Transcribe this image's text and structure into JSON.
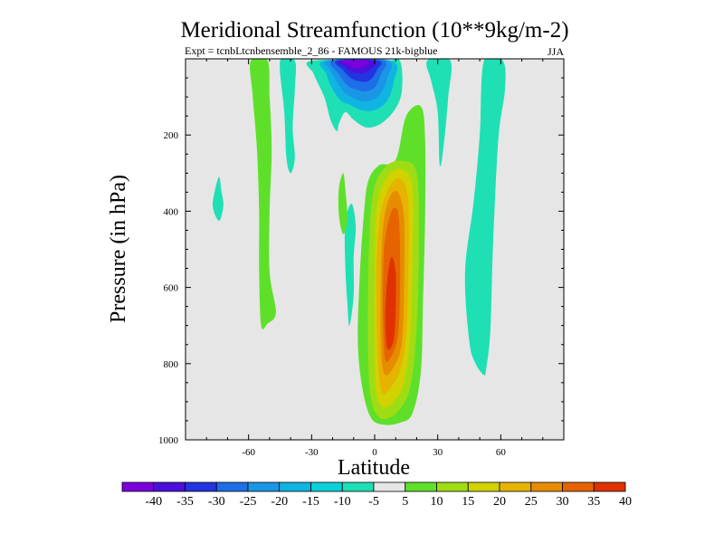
{
  "chart_data": {
    "type": "filled-contour",
    "title": "Meridional Streamfunction (10**9kg/m-2)",
    "subtitle_left": "Expt = tcnbLtcnbensemble_2_86 - FAMOUS 21k-bigblue",
    "subtitle_right": "JJA",
    "xlabel": "Latitude",
    "ylabel": "Pressure (in hPa)",
    "xlim": [
      -90,
      90
    ],
    "ylim": [
      1000,
      0
    ],
    "x_ticks": [
      -60,
      -30,
      0,
      30,
      60
    ],
    "x_tick_labels": [
      "-60",
      "-30",
      "0",
      "30",
      "60"
    ],
    "y_ticks": [
      200,
      400,
      600,
      800,
      1000
    ],
    "y_tick_labels": [
      "200",
      "400",
      "600",
      "800",
      "1000"
    ],
    "background_color": "#e6e6e6",
    "colorbar": {
      "levels": [
        -40,
        -35,
        -30,
        -25,
        -20,
        -15,
        -10,
        -5,
        5,
        10,
        15,
        20,
        25,
        30,
        35,
        40
      ],
      "labels": [
        "-40",
        "-35",
        "-30",
        "-25",
        "-20",
        "-15",
        "-10",
        "-5",
        "5",
        "10",
        "15",
        "20",
        "25",
        "30",
        "35",
        "40"
      ],
      "colors": [
        "#7a00dc",
        "#4b0fdc",
        "#2233e0",
        "#1e6ee6",
        "#1a96e6",
        "#10b4e0",
        "#0ad0d8",
        "#1ee0b4",
        "#e6e6e6",
        "#5ee02a",
        "#a0dc14",
        "#d2d200",
        "#e6b400",
        "#e68c00",
        "#e66400",
        "#e03200"
      ]
    },
    "regions": [
      {
        "name": "nh-subtropical-cell-positive",
        "level": 5,
        "points": [
          [
            4,
            960
          ],
          [
            -2,
            940
          ],
          [
            -6,
            860
          ],
          [
            -8,
            740
          ],
          [
            -7,
            560
          ],
          [
            -5,
            400
          ],
          [
            -3,
            320
          ],
          [
            2,
            280
          ],
          [
            10,
            265
          ],
          [
            15,
            150
          ],
          [
            22,
            125
          ],
          [
            24,
            210
          ],
          [
            24,
            420
          ],
          [
            23,
            640
          ],
          [
            22,
            820
          ],
          [
            18,
            930
          ],
          [
            12,
            955
          ]
        ]
      },
      {
        "name": "cell-level-10",
        "level": 10,
        "points": [
          [
            4,
            945
          ],
          [
            -1,
            910
          ],
          [
            -3,
            800
          ],
          [
            -3,
            560
          ],
          [
            -1,
            360
          ],
          [
            5,
            285
          ],
          [
            13,
            268
          ],
          [
            20,
            300
          ],
          [
            21,
            480
          ],
          [
            20,
            700
          ],
          [
            17,
            860
          ],
          [
            11,
            925
          ]
        ]
      },
      {
        "name": "cell-level-15",
        "level": 15,
        "points": [
          [
            4,
            915
          ],
          [
            1,
            880
          ],
          [
            0,
            780
          ],
          [
            0,
            560
          ],
          [
            1,
            390
          ],
          [
            6,
            310
          ],
          [
            13,
            290
          ],
          [
            18,
            340
          ],
          [
            18,
            520
          ],
          [
            17,
            720
          ],
          [
            14,
            850
          ],
          [
            9,
            900
          ]
        ]
      },
      {
        "name": "cell-level-20",
        "level": 20,
        "points": [
          [
            4,
            880
          ],
          [
            2,
            830
          ],
          [
            1,
            700
          ],
          [
            1,
            520
          ],
          [
            3,
            400
          ],
          [
            7,
            335
          ],
          [
            12,
            315
          ],
          [
            16,
            370
          ],
          [
            16,
            560
          ],
          [
            15,
            730
          ],
          [
            12,
            820
          ],
          [
            8,
            860
          ]
        ]
      },
      {
        "name": "cell-level-25",
        "level": 25,
        "points": [
          [
            5,
            830
          ],
          [
            3,
            760
          ],
          [
            3,
            580
          ],
          [
            4,
            440
          ],
          [
            7,
            365
          ],
          [
            11,
            350
          ],
          [
            14,
            420
          ],
          [
            14,
            600
          ],
          [
            13,
            740
          ],
          [
            10,
            800
          ]
        ]
      },
      {
        "name": "cell-level-30",
        "level": 30,
        "points": [
          [
            5,
            790
          ],
          [
            4,
            700
          ],
          [
            4,
            560
          ],
          [
            5,
            470
          ],
          [
            8,
            400
          ],
          [
            11,
            400
          ],
          [
            12,
            480
          ],
          [
            12,
            620
          ],
          [
            11,
            730
          ],
          [
            8,
            780
          ]
        ]
      },
      {
        "name": "cell-level-35",
        "level": 35,
        "points": [
          [
            6,
            760
          ],
          [
            5,
            680
          ],
          [
            6,
            580
          ],
          [
            8,
            520
          ],
          [
            10,
            560
          ],
          [
            10,
            660
          ],
          [
            9,
            740
          ]
        ]
      },
      {
        "name": "cell-level-40",
        "level": 40,
        "points": [
          [
            7,
            720
          ],
          [
            6,
            650
          ],
          [
            7,
            590
          ],
          [
            9,
            600
          ],
          [
            9,
            680
          ],
          [
            8,
            710
          ]
        ]
      },
      {
        "name": "sh-strat-positive",
        "level": 5,
        "points": [
          [
            -59,
            5
          ],
          [
            -51,
            5
          ],
          [
            -50,
            100
          ],
          [
            -49,
            240
          ],
          [
            -50,
            400
          ],
          [
            -50,
            560
          ],
          [
            -47,
            665
          ],
          [
            -51,
            695
          ],
          [
            -54,
            700
          ],
          [
            -55,
            560
          ],
          [
            -55,
            400
          ],
          [
            -56,
            240
          ],
          [
            -58,
            100
          ]
        ]
      },
      {
        "name": "sh-strat-negative",
        "level": -5,
        "points": [
          [
            -45,
            5
          ],
          [
            -38,
            5
          ],
          [
            -38,
            80
          ],
          [
            -39,
            180
          ],
          [
            -38,
            260
          ],
          [
            -40,
            300
          ],
          [
            -42,
            260
          ],
          [
            -43,
            140
          ]
        ]
      },
      {
        "name": "nh-strat-negative-ridge",
        "level": -5,
        "points": [
          [
            25,
            5
          ],
          [
            36,
            5
          ],
          [
            35,
            100
          ],
          [
            33,
            220
          ],
          [
            31,
            280
          ],
          [
            30,
            140
          ],
          [
            27,
            60
          ]
        ]
      },
      {
        "name": "nh-strat-negative-deep",
        "level": -5,
        "points": [
          [
            52,
            5
          ],
          [
            61,
            5
          ],
          [
            62,
            80
          ],
          [
            59,
            200
          ],
          [
            57,
            400
          ],
          [
            56,
            540
          ],
          [
            55,
            720
          ],
          [
            53,
            815
          ],
          [
            52,
            830
          ],
          [
            48,
            800
          ],
          [
            45,
            740
          ],
          [
            43,
            560
          ],
          [
            47,
            380
          ],
          [
            50,
            200
          ]
        ]
      },
      {
        "name": "sh-midlevel-negative-small",
        "level": -5,
        "points": [
          [
            -74,
            425
          ],
          [
            -72,
            385
          ],
          [
            -73,
            345
          ],
          [
            -74,
            310
          ],
          [
            -76,
            345
          ],
          [
            -77,
            390
          ]
        ]
      },
      {
        "name": "sh-midlevel-negative-cell",
        "level": -5,
        "points": [
          [
            -12,
            700
          ],
          [
            -10,
            620
          ],
          [
            -10,
            520
          ],
          [
            -9,
            440
          ],
          [
            -11,
            380
          ],
          [
            -14,
            430
          ],
          [
            -14,
            540
          ],
          [
            -13,
            640
          ]
        ]
      },
      {
        "name": "sh-midlevel-positive-small",
        "level": 5,
        "points": [
          [
            -15,
            460
          ],
          [
            -13,
            420
          ],
          [
            -14,
            340
          ],
          [
            -15,
            300
          ],
          [
            -17,
            340
          ],
          [
            -17,
            410
          ]
        ]
      },
      {
        "name": "tropical-negative-cell",
        "level": -5,
        "points": [
          [
            -30,
            5
          ],
          [
            5,
            5
          ],
          [
            12,
            5
          ],
          [
            13,
            80
          ],
          [
            10,
            130
          ],
          [
            3,
            170
          ],
          [
            -4,
            180
          ],
          [
            -10,
            160
          ],
          [
            -14,
            140
          ],
          [
            -17,
            170
          ],
          [
            -18,
            190
          ],
          [
            -21,
            160
          ],
          [
            -24,
            100
          ],
          [
            -29,
            40
          ]
        ]
      },
      {
        "name": "tropical-neg-level-10",
        "level": -10,
        "points": [
          [
            -24,
            5
          ],
          [
            8,
            5
          ],
          [
            9,
            60
          ],
          [
            6,
            110
          ],
          [
            0,
            135
          ],
          [
            -6,
            135
          ],
          [
            -12,
            120
          ],
          [
            -16,
            110
          ],
          [
            -20,
            80
          ],
          [
            -23,
            40
          ]
        ]
      },
      {
        "name": "tropical-neg-level-15",
        "level": -15,
        "points": [
          [
            -22,
            5
          ],
          [
            6,
            5
          ],
          [
            6,
            50
          ],
          [
            3,
            90
          ],
          [
            -2,
            110
          ],
          [
            -8,
            108
          ],
          [
            -14,
            90
          ],
          [
            -18,
            60
          ],
          [
            -21,
            30
          ]
        ]
      },
      {
        "name": "tropical-neg-level-20",
        "level": -20,
        "points": [
          [
            -20,
            5
          ],
          [
            4,
            5
          ],
          [
            3,
            40
          ],
          [
            0,
            75
          ],
          [
            -4,
            85
          ],
          [
            -8,
            82
          ],
          [
            -13,
            70
          ],
          [
            -17,
            40
          ]
        ]
      },
      {
        "name": "tropical-neg-level-25",
        "level": -25,
        "points": [
          [
            -18,
            5
          ],
          [
            2,
            5
          ],
          [
            1,
            30
          ],
          [
            -2,
            55
          ],
          [
            -6,
            60
          ],
          [
            -11,
            52
          ],
          [
            -15,
            30
          ]
        ]
      },
      {
        "name": "tropical-neg-level-30",
        "level": -30,
        "points": [
          [
            -17,
            5
          ],
          [
            0,
            5
          ],
          [
            -2,
            28
          ],
          [
            -6,
            38
          ],
          [
            -11,
            34
          ],
          [
            -14,
            20
          ]
        ]
      },
      {
        "name": "tropical-neg-level-35",
        "level": -35,
        "points": [
          [
            -16,
            5
          ],
          [
            -3,
            5
          ],
          [
            -5,
            20
          ],
          [
            -9,
            24
          ],
          [
            -13,
            16
          ]
        ]
      }
    ]
  }
}
